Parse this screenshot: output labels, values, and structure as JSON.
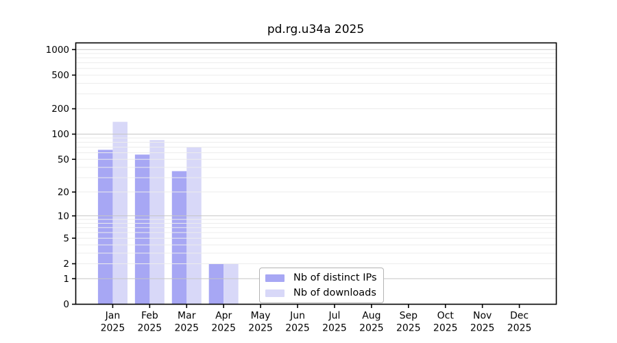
{
  "chart_data": {
    "type": "bar",
    "title": "pd.rg.u34a 2025",
    "categories": [
      "Jan",
      "Feb",
      "Mar",
      "Apr",
      "May",
      "Jun",
      "Jul",
      "Aug",
      "Sep",
      "Oct",
      "Nov",
      "Dec"
    ],
    "category_year": "2025",
    "series": [
      {
        "name": "Nb of distinct IPs",
        "color": "#a7a7f4",
        "values": [
          65,
          57,
          36,
          2,
          0,
          0,
          0,
          0,
          0,
          0,
          0,
          0
        ]
      },
      {
        "name": "Nb of downloads",
        "color": "#d8d8f8",
        "values": [
          140,
          85,
          70,
          2,
          0,
          0,
          0,
          0,
          0,
          0,
          0,
          0
        ]
      }
    ],
    "yscale": "log1p",
    "ylim": [
      0,
      1200
    ],
    "yticks": [
      0,
      1,
      2,
      5,
      10,
      20,
      50,
      100,
      200,
      500,
      1000
    ],
    "gridlines": {
      "major": [
        1,
        10,
        100,
        1000
      ],
      "minor": [
        2,
        3,
        4,
        5,
        6,
        7,
        8,
        9,
        20,
        30,
        40,
        50,
        60,
        70,
        80,
        90,
        200,
        300,
        400,
        500,
        600,
        700,
        800,
        900
      ]
    },
    "grid": true,
    "legend_position": "inside-bottom-center",
    "colors": {
      "axis": "#000000",
      "text": "#000000",
      "grid_major": "#c6c6c6",
      "grid_minor": "#ececec",
      "background": "#ffffff"
    }
  }
}
